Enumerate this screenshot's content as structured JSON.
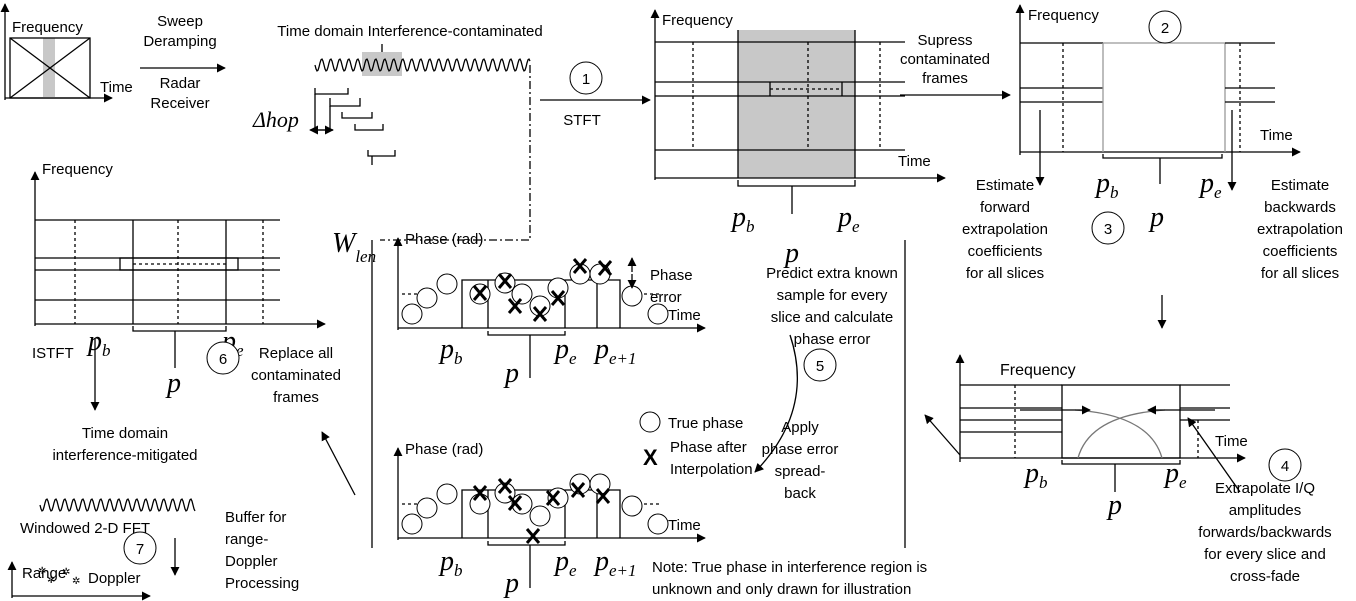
{
  "input": {
    "freq": "Frequency",
    "time": "Time"
  },
  "deramp": {
    "top": [
      "Sweep",
      "Deramping"
    ],
    "bottom": [
      "Radar",
      "Receiver"
    ]
  },
  "contaminated": {
    "title": "Time domain Interference-contaminated",
    "hop": "Δhop",
    "wlen": {
      "base": "W",
      "sub": "len"
    }
  },
  "step1": {
    "num": "1",
    "label": "STFT"
  },
  "stft_plot": {
    "freq": "Frequency",
    "time": "Time",
    "pb": {
      "base": "p",
      "sub": "b"
    },
    "p": "p",
    "pe": {
      "base": "p",
      "sub": "e"
    }
  },
  "suppress": [
    "Supress",
    "contaminated",
    "frames"
  ],
  "suppressed_plot": {
    "num": "2",
    "freq": "Frequency",
    "time": "Time",
    "pb": {
      "base": "p",
      "sub": "b"
    },
    "p": "p",
    "pe": {
      "base": "p",
      "sub": "e"
    }
  },
  "step3": {
    "num": "3",
    "forward": [
      "Estimate",
      "forward",
      "extrapolation",
      "coefficients",
      "for all slices"
    ],
    "backward": [
      "Estimate",
      "backwards",
      "extrapolation",
      "coefficients",
      "for all slices"
    ]
  },
  "step4": {
    "num": "4",
    "freq": "Frequency",
    "time": "Time",
    "pb": {
      "base": "p",
      "sub": "b"
    },
    "p": "p",
    "pe": {
      "base": "p",
      "sub": "e"
    },
    "text": [
      "Extrapolate I/Q",
      "amplitudes",
      "forwards/backwards",
      "for every slice and",
      "cross-fade"
    ]
  },
  "phase_top": {
    "axis": "Phase (rad)",
    "time": "Time",
    "error": [
      "Phase",
      "error"
    ],
    "pb": {
      "base": "p",
      "sub": "b"
    },
    "p": "p",
    "pe": {
      "base": "p",
      "sub": "e"
    },
    "pe1": {
      "base": "p",
      "sub": "e+1"
    }
  },
  "phase_bottom": {
    "axis": "Phase (rad)",
    "time": "Time",
    "pb": {
      "base": "p",
      "sub": "b"
    },
    "p": "p",
    "pe": {
      "base": "p",
      "sub": "e"
    },
    "pe1": {
      "base": "p",
      "sub": "e+1"
    }
  },
  "legend": {
    "true": "True phase",
    "x": "X",
    "interp": [
      "Phase after",
      "Interpolation"
    ]
  },
  "step5": {
    "num": "5",
    "predict": [
      "Predict extra known",
      "sample for every",
      "slice and calculate",
      "phase error"
    ],
    "apply": [
      "Apply",
      "phase error",
      "spread-",
      "back"
    ]
  },
  "note": [
    "Note: True phase in interference region is",
    "unknown and only drawn for illustration"
  ],
  "step6": {
    "num": "6",
    "freq": "Frequency",
    "pb": {
      "base": "p",
      "sub": "b"
    },
    "p": "p",
    "pe": {
      "base": "p",
      "sub": "e"
    },
    "istft": "ISTFT",
    "replace": [
      "Replace all",
      "contaminated",
      "frames"
    ]
  },
  "mitigated": [
    "Time domain",
    "interference-mitigated"
  ],
  "step7": {
    "num": "7",
    "fft": "Windowed 2-D FFT",
    "buffer": [
      "Buffer for",
      "range-",
      "Doppler",
      "Processing"
    ],
    "range": "Range",
    "doppler": "Doppler"
  }
}
